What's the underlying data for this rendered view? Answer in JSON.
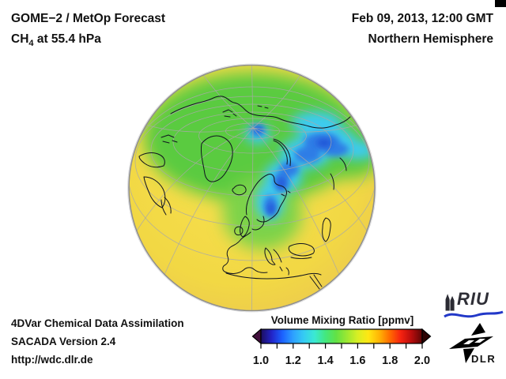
{
  "header": {
    "product_line1": "GOME−2 / MetOp Forecast",
    "species_prefix": "CH",
    "species_sub": "4",
    "species_suffix": " at 55.4 hPa",
    "datetime": "Feb 09, 2013, 12:00 GMT",
    "region": "Northern Hemisphere"
  },
  "footer": {
    "line1": "4DVar Chemical Data Assimilation",
    "line2": "SACADA Version 2.4",
    "line3": "http://wdc.dlr.de"
  },
  "colorbar": {
    "title": "Volume Mixing Ratio [ppmv]",
    "tick_labels": [
      "1.0",
      "1.2",
      "1.4",
      "1.6",
      "1.8",
      "2.0"
    ],
    "range_min": 1.0,
    "range_max": 2.0,
    "minor_tick_interval": 0.1,
    "gradient": [
      "#1c0e5e",
      "#2224c8",
      "#1b62ff",
      "#2ea1ff",
      "#35ccf2",
      "#3be9d2",
      "#43e87e",
      "#62e144",
      "#9ce832",
      "#d8ef24",
      "#ffe713",
      "#ffb505",
      "#ff6a00",
      "#f62310",
      "#b80d0d",
      "#5d0606"
    ],
    "left_arrow_color": "#42103c",
    "right_arrow_color": "#2e0404"
  },
  "logos": {
    "riu_text": "RIU",
    "riu_wave_color": "#2238c8",
    "dlr_text": "DLR"
  },
  "globe_colors": {
    "background_yellow": "#f2d844",
    "high_lat_green": "#5acb41",
    "europe_green": "#7dd348",
    "vortex_cyan": "#3ecbef",
    "vortex_blue": "#2e7de6",
    "vortex_core_blue": "#2456d8",
    "graticule_gray": "#a8a8a8",
    "coastline": "#10131f"
  },
  "chart_data": {
    "type": "heatmap",
    "title": "GOME−2 / MetOp Forecast — CH4 at 55.4 hPa",
    "datetime": "Feb 09, 2013, 12:00 GMT",
    "region": "Northern Hemisphere",
    "projection": "orthographic globe centered near Scandinavia / North Pole",
    "colorbar_label": "Volume Mixing Ratio [ppmv]",
    "colorbar_ticks": [
      1.0,
      1.2,
      1.4,
      1.6,
      1.8,
      2.0
    ],
    "colorbar_range": [
      1.0,
      2.0
    ],
    "field_summary": [
      {
        "region": "low and mid latitudes (outer disk)",
        "approx_value_ppmv": 1.65,
        "color": "yellow"
      },
      {
        "region": "high latitudes",
        "approx_value_ppmv": 1.45,
        "color": "green"
      },
      {
        "region": "polar vortex band Scandinavia–Barents Sea–Siberia",
        "approx_value_ppmv": 1.3,
        "color": "cyan"
      },
      {
        "region": "vortex cores near pole, Novaya Zemlya and Baltic",
        "approx_value_ppmv": 1.15,
        "color": "blue"
      }
    ]
  }
}
